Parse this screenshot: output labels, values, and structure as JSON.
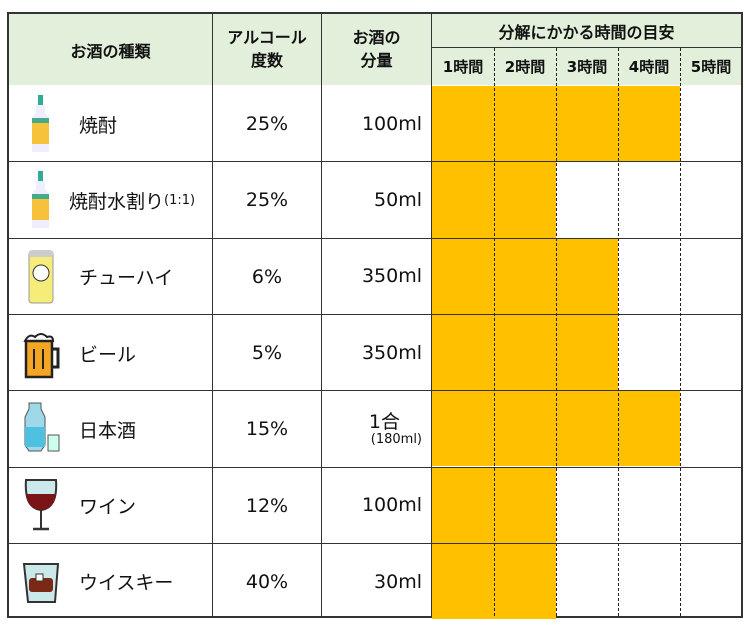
{
  "header": {
    "type": "お酒の種類",
    "abv": [
      "アルコール",
      "度数"
    ],
    "amount": [
      "お酒の",
      "分量"
    ],
    "time_title": "分解にかかる時間の目安",
    "hours": [
      "1時間",
      "2時間",
      "3時間",
      "4時間",
      "5時間"
    ]
  },
  "colors": {
    "header_bg": "#e2efda",
    "bar": "#ffc000"
  },
  "chart_data": {
    "type": "table",
    "xlabel": "分解にかかる時間の目安",
    "xlim": [
      0,
      5
    ],
    "rows": [
      {
        "name": "焼酎",
        "name_suffix": "",
        "icon": "shochu-bottle-icon",
        "abv": "25%",
        "amount": "100ml",
        "amount_sub": "",
        "hours": 4
      },
      {
        "name": "焼酎水割り",
        "name_suffix": "(1:1)",
        "icon": "shochu-bottle-icon",
        "abv": "25%",
        "amount": "50ml",
        "amount_sub": "",
        "hours": 2
      },
      {
        "name": "チューハイ",
        "name_suffix": "",
        "icon": "chuhai-can-icon",
        "abv": "6%",
        "amount": "350ml",
        "amount_sub": "",
        "hours": 3
      },
      {
        "name": "ビール",
        "name_suffix": "",
        "icon": "beer-mug-icon",
        "abv": "5%",
        "amount": "350ml",
        "amount_sub": "",
        "hours": 3
      },
      {
        "name": "日本酒",
        "name_suffix": "",
        "icon": "sake-bottle-icon",
        "abv": "15%",
        "amount": "1合",
        "amount_sub": "(180ml)",
        "hours": 4
      },
      {
        "name": "ワイン",
        "name_suffix": "",
        "icon": "wine-glass-icon",
        "abv": "12%",
        "amount": "100ml",
        "amount_sub": "",
        "hours": 2
      },
      {
        "name": "ウイスキー",
        "name_suffix": "",
        "icon": "whisky-glass-icon",
        "abv": "40%",
        "amount": "30ml",
        "amount_sub": "",
        "hours": 2
      }
    ]
  }
}
